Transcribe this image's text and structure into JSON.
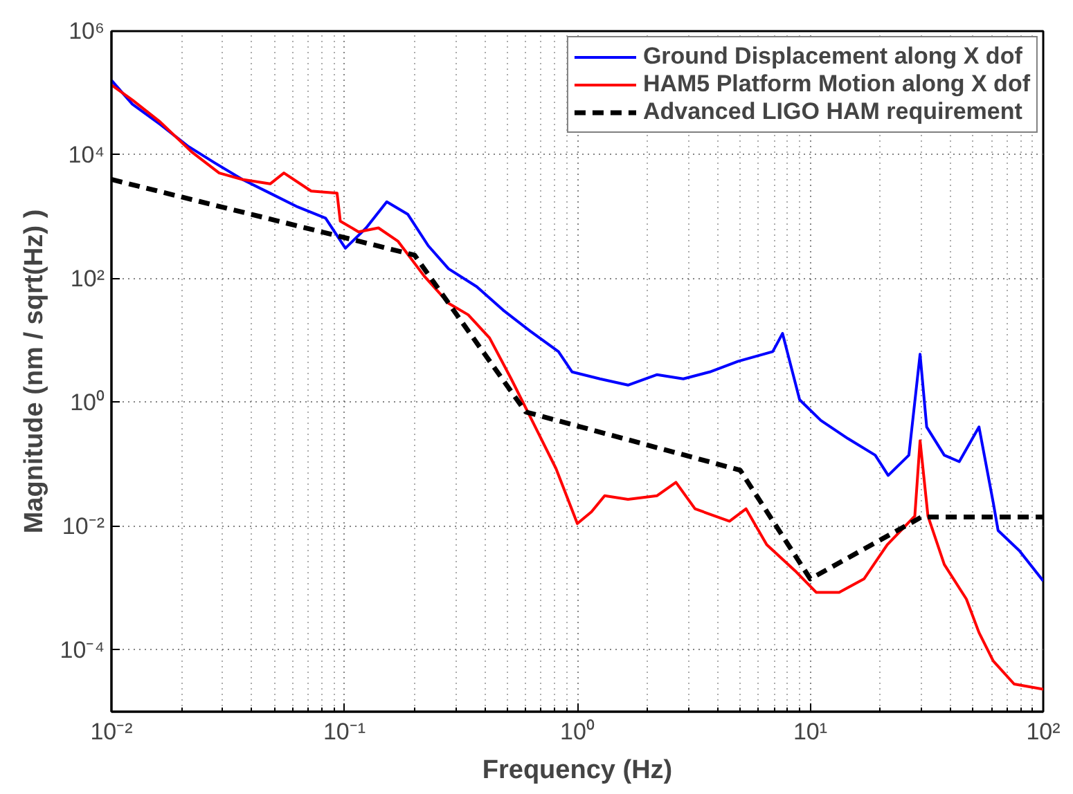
{
  "chart_data": {
    "type": "line",
    "xlabel": "Frequency (Hz)",
    "ylabel": "Magnitude (nm / sqrt(Hz) )",
    "log": "xy",
    "grid": true,
    "legend": "top right",
    "line_style": "solid",
    "marker": "none",
    "xlim": [
      0.01,
      100
    ],
    "ylim": [
      1e-05,
      1000000
    ],
    "xticks": [
      {
        "value": 0.01,
        "label": "10⁻²"
      },
      {
        "value": 0.1,
        "label": "10⁻¹"
      },
      {
        "value": 1,
        "label": "10⁰"
      },
      {
        "value": 10,
        "label": "10¹"
      },
      {
        "value": 100,
        "label": "10²"
      }
    ],
    "yticks": [
      {
        "value": 0.0001,
        "label": "10⁻⁴"
      },
      {
        "value": 0.01,
        "label": "10⁻²"
      },
      {
        "value": 1,
        "label": "10⁰"
      },
      {
        "value": 100,
        "label": "10²"
      },
      {
        "value": 10000,
        "label": "10⁴"
      },
      {
        "value": 1000000,
        "label": "10⁶"
      }
    ],
    "series": [
      {
        "name": "Ground Displacement along X dof",
        "color": "#0000ff",
        "x": [
          0.01,
          0.0123,
          0.0162,
          0.0212,
          0.0278,
          0.0365,
          0.048,
          0.063,
          0.083,
          0.101,
          0.124,
          0.152,
          0.187,
          0.229,
          0.28,
          0.37,
          0.48,
          0.63,
          0.83,
          0.95,
          1.25,
          1.65,
          2.2,
          2.85,
          3.7,
          4.9,
          6.9,
          7.6,
          9.0,
          11.1,
          14.5,
          19.0,
          21.6,
          26.5,
          29.6,
          31.6,
          37.6,
          43.6,
          53,
          61,
          64,
          79,
          100
        ],
        "values": [
          160000,
          66000,
          31000,
          14000,
          7400,
          4000,
          2400,
          1440,
          950,
          310,
          660,
          1740,
          1100,
          340,
          144,
          74,
          31,
          14,
          6.6,
          3.1,
          2.4,
          1.9,
          2.8,
          2.4,
          3.1,
          4.6,
          6.6,
          13,
          1.1,
          0.51,
          0.26,
          0.14,
          0.066,
          0.14,
          6,
          0.4,
          0.14,
          0.11,
          0.4,
          0.024,
          0.0085,
          0.004,
          0.0013
        ]
      },
      {
        "name": "HAM5 Platform Motion along X dof",
        "color": "#ff0000",
        "x": [
          0.01,
          0.0123,
          0.0162,
          0.0222,
          0.029,
          0.0365,
          0.048,
          0.055,
          0.072,
          0.093,
          0.096,
          0.115,
          0.14,
          0.17,
          0.22,
          0.28,
          0.34,
          0.42,
          0.52,
          0.66,
          0.81,
          1.0,
          1.15,
          1.31,
          1.65,
          2.2,
          2.65,
          3.2,
          4.5,
          5.3,
          6.5,
          8.6,
          10.6,
          13.3,
          17.0,
          21.4,
          28.1,
          29.6,
          32.0,
          37.6,
          46.8,
          53,
          61,
          75,
          100
        ],
        "values": [
          135000,
          77000,
          34000,
          11000,
          5100,
          4000,
          3400,
          5100,
          2600,
          2400,
          850,
          570,
          660,
          400,
          110,
          40,
          26,
          11,
          2.4,
          0.4,
          0.085,
          0.011,
          0.017,
          0.031,
          0.027,
          0.031,
          0.051,
          0.019,
          0.012,
          0.019,
          0.005,
          0.0019,
          0.00085,
          0.00085,
          0.0014,
          0.005,
          0.0145,
          0.24,
          0.0145,
          0.0024,
          0.00066,
          0.00019,
          6.6e-05,
          2.8e-05,
          2.3e-05
        ]
      },
      {
        "name": "Advanced LIGO HAM requirement",
        "color": "#000000",
        "line_style": "dashed",
        "x": [
          0.01,
          0.2,
          0.6,
          5,
          10,
          30,
          100
        ],
        "values": [
          4000,
          240,
          0.7,
          0.08,
          0.0014,
          0.014,
          0.014
        ]
      }
    ]
  }
}
